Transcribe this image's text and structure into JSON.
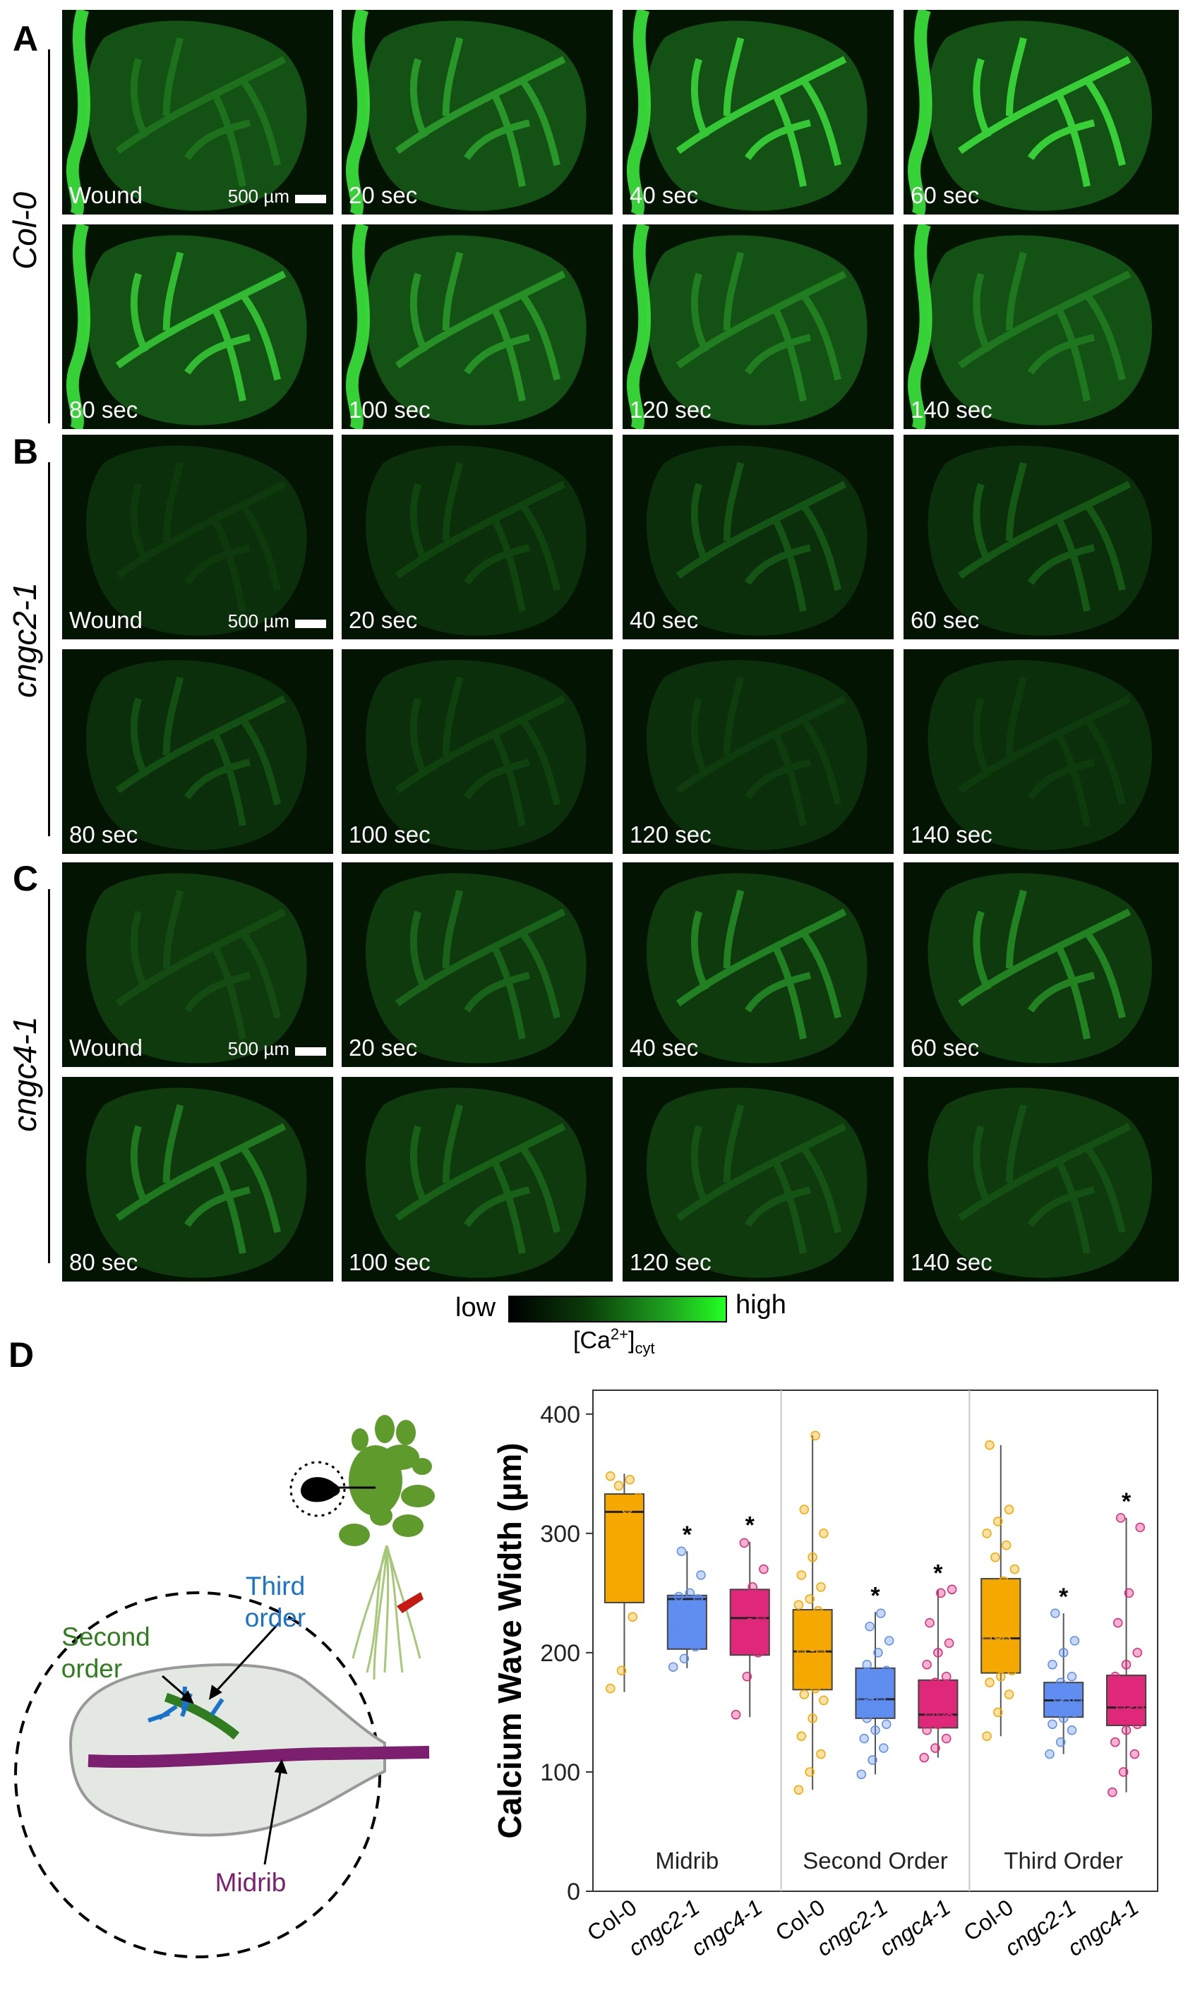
{
  "panels": [
    {
      "letter": "A",
      "genotype": "Col-0",
      "intensity": "high"
    },
    {
      "letter": "B",
      "genotype": "cngc2-1",
      "intensity": "low"
    },
    {
      "letter": "C",
      "genotype": "cngc4-1",
      "intensity": "mid"
    }
  ],
  "time_labels": [
    "Wound",
    "20 sec",
    "40 sec",
    "60 sec",
    "80 sec",
    "100 sec",
    "120 sec",
    "140 sec"
  ],
  "scale_bar_label": "500 µm",
  "colorbar": {
    "low": "low",
    "high": "high",
    "label_main": "[Ca",
    "label_sup": "2+",
    "label_close": "]",
    "label_sub": "cyt"
  },
  "panel_d": {
    "letter": "D",
    "labels": {
      "second_order_1": "Second",
      "second_order_2": "order",
      "third_order_1": "Third",
      "third_order_2": "order",
      "midrib": "Midrib"
    },
    "colors": {
      "midrib": "#7b1f6e",
      "second": "#2f7d1e",
      "third": "#1a73c9",
      "leaf_fill": "#e4e8e2",
      "plant": "#5f9a2c",
      "root": "#a7c779",
      "arrow_red": "#c41a12"
    }
  },
  "chart_data": {
    "type": "box",
    "ylabel": "Calcium Wave Width (µm)",
    "ylim": [
      0,
      420
    ],
    "yticks": [
      0,
      100,
      200,
      300,
      400
    ],
    "groups": [
      "Midrib",
      "Second Order",
      "Third Order"
    ],
    "categories": [
      "Col-0",
      "cngc2-1",
      "cngc4-1",
      "Col-0",
      "cngc2-1",
      "cngc4-1",
      "Col-0",
      "cngc2-1",
      "cngc4-1"
    ],
    "colors": {
      "Col-0": "#f5a800",
      "cngc2-1": "#5f8df0",
      "cngc4-1": "#e0287a"
    },
    "boxes": [
      {
        "group": "Midrib",
        "genotype": "Col-0",
        "min": 167,
        "q1": 242,
        "median": 318,
        "q3": 333,
        "max": 350,
        "sig": false,
        "points": [
          170,
          185,
          230,
          250,
          270,
          290,
          305,
          320,
          330,
          340,
          345,
          348
        ]
      },
      {
        "group": "Midrib",
        "genotype": "cngc2-1",
        "min": 187,
        "q1": 203,
        "median": 245,
        "q3": 248,
        "max": 285,
        "sig": true,
        "points": [
          188,
          195,
          205,
          220,
          240,
          245,
          247,
          250,
          265,
          285
        ]
      },
      {
        "group": "Midrib",
        "genotype": "cngc4-1",
        "min": 146,
        "q1": 198,
        "median": 229,
        "q3": 253,
        "max": 293,
        "sig": true,
        "points": [
          148,
          180,
          200,
          215,
          225,
          230,
          240,
          255,
          270,
          292
        ]
      },
      {
        "group": "Second Order",
        "genotype": "Col-0",
        "min": 85,
        "q1": 169,
        "median": 201,
        "q3": 236,
        "max": 382,
        "sig": false,
        "points": [
          85,
          100,
          115,
          130,
          145,
          160,
          165,
          170,
          175,
          180,
          185,
          190,
          195,
          200,
          200,
          205,
          210,
          215,
          220,
          225,
          230,
          235,
          240,
          245,
          255,
          265,
          280,
          300,
          320,
          382
        ]
      },
      {
        "group": "Second Order",
        "genotype": "cngc2-1",
        "min": 98,
        "q1": 145,
        "median": 161,
        "q3": 187,
        "max": 234,
        "sig": true,
        "points": [
          98,
          110,
          120,
          128,
          135,
          140,
          145,
          150,
          155,
          158,
          160,
          162,
          165,
          170,
          175,
          180,
          185,
          190,
          200,
          210,
          222,
          233
        ]
      },
      {
        "group": "Second Order",
        "genotype": "cngc4-1",
        "min": 112,
        "q1": 137,
        "median": 148,
        "q3": 177,
        "max": 253,
        "sig": true,
        "points": [
          112,
          120,
          128,
          135,
          140,
          145,
          148,
          150,
          155,
          160,
          165,
          170,
          175,
          180,
          190,
          200,
          208,
          225,
          250,
          253
        ]
      },
      {
        "group": "Third Order",
        "genotype": "Col-0",
        "min": 130,
        "q1": 183,
        "median": 212,
        "q3": 262,
        "max": 374,
        "sig": false,
        "points": [
          130,
          150,
          165,
          175,
          180,
          185,
          190,
          195,
          200,
          205,
          210,
          212,
          215,
          220,
          225,
          230,
          240,
          250,
          260,
          270,
          280,
          290,
          300,
          310,
          320,
          374
        ]
      },
      {
        "group": "Third Order",
        "genotype": "cngc2-1",
        "min": 115,
        "q1": 146,
        "median": 160,
        "q3": 175,
        "max": 233,
        "sig": true,
        "points": [
          115,
          125,
          135,
          140,
          145,
          150,
          155,
          158,
          160,
          162,
          165,
          170,
          175,
          180,
          190,
          200,
          210,
          233
        ]
      },
      {
        "group": "Third Order",
        "genotype": "cngc4-1",
        "min": 83,
        "q1": 139,
        "median": 154,
        "q3": 181,
        "max": 313,
        "sig": true,
        "points": [
          83,
          100,
          115,
          125,
          135,
          140,
          145,
          150,
          152,
          155,
          158,
          162,
          168,
          175,
          180,
          190,
          200,
          225,
          250,
          305,
          313
        ]
      }
    ],
    "significance_symbol": "*"
  }
}
